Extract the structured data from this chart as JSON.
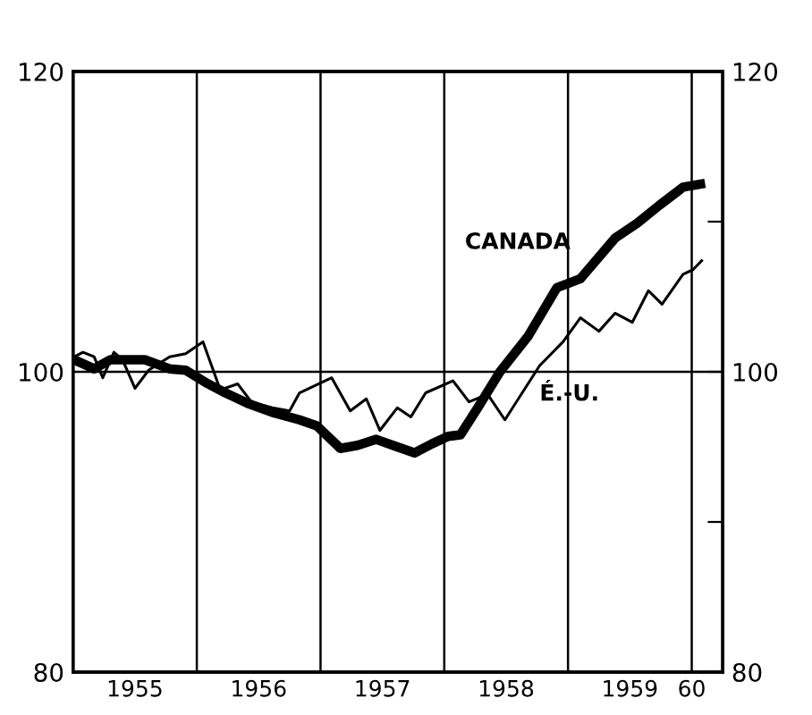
{
  "chart_data": {
    "type": "line",
    "xlim": [
      1955,
      1960.25
    ],
    "ylim": [
      80,
      120
    ],
    "xticks": [
      {
        "value": 1956,
        "label": null
      },
      {
        "value": 1957,
        "label": null
      },
      {
        "value": 1958,
        "label": null
      },
      {
        "value": 1959,
        "label": null
      },
      {
        "value": 1955.5,
        "label": "1955"
      },
      {
        "value": 1956.5,
        "label": "1956"
      },
      {
        "value": 1957.5,
        "label": "1957"
      },
      {
        "value": 1958.5,
        "label": "1958"
      },
      {
        "value": 1959.5,
        "label": "1959"
      },
      {
        "value": 1960,
        "label": "60"
      }
    ],
    "yticks": [
      80,
      100,
      120
    ],
    "y2lim": [
      80,
      120
    ],
    "y2ticks": [
      80,
      {
        "value": 90,
        "label": null
      },
      100,
      {
        "value": 110,
        "label": null
      },
      120
    ],
    "grid": true,
    "legend": false,
    "marker": "none",
    "line_style": "solid",
    "series": [
      {
        "name": "CANADA",
        "color": "#000000",
        "x": [
          1955.01,
          1955.17,
          1955.3,
          1955.58,
          1955.78,
          1955.91,
          1956.09,
          1956.23,
          1956.41,
          1956.61,
          1956.83,
          1956.97,
          1957.16,
          1957.3,
          1957.45,
          1957.62,
          1957.76,
          1957.9,
          1958.03,
          1958.13,
          1958.27,
          1958.45,
          1958.68,
          1958.91,
          1959.1,
          1959.38,
          1959.56,
          1959.74,
          1959.93,
          1960.07
        ],
        "values": [
          100.8,
          100.2,
          100.8,
          100.8,
          100.2,
          100.1,
          99.2,
          98.6,
          97.9,
          97.3,
          96.8,
          96.4,
          94.9,
          95.1,
          95.5,
          95.0,
          94.6,
          95.2,
          95.7,
          95.8,
          97.6,
          100.0,
          102.4,
          105.6,
          106.2,
          108.9,
          109.9,
          111.1,
          112.3,
          112.5
        ]
      },
      {
        "name": "É.-U.",
        "color": "#000000",
        "x": [
          1955.01,
          1955.08,
          1955.17,
          1955.24,
          1955.33,
          1955.4,
          1955.5,
          1955.61,
          1955.78,
          1955.91,
          1956.05,
          1956.19,
          1956.33,
          1956.44,
          1956.61,
          1956.75,
          1956.83,
          1957.09,
          1957.24,
          1957.37,
          1957.48,
          1957.62,
          1957.73,
          1957.85,
          1958.07,
          1958.2,
          1958.35,
          1958.49,
          1958.63,
          1958.77,
          1958.96,
          1959.1,
          1959.25,
          1959.38,
          1959.52,
          1959.65,
          1959.76,
          1959.93,
          1960.01,
          1960.08
        ],
        "values": [
          101.0,
          101.3,
          101.0,
          99.6,
          101.3,
          100.8,
          98.9,
          100.1,
          101.0,
          101.2,
          102.0,
          98.8,
          99.2,
          98.0,
          97.6,
          97.4,
          98.6,
          99.6,
          97.4,
          98.2,
          96.1,
          97.6,
          97.0,
          98.6,
          99.4,
          98.0,
          98.5,
          96.8,
          98.6,
          100.4,
          102.0,
          103.6,
          102.7,
          103.9,
          103.3,
          105.4,
          104.5,
          106.5,
          106.8,
          107.4
        ]
      }
    ]
  }
}
